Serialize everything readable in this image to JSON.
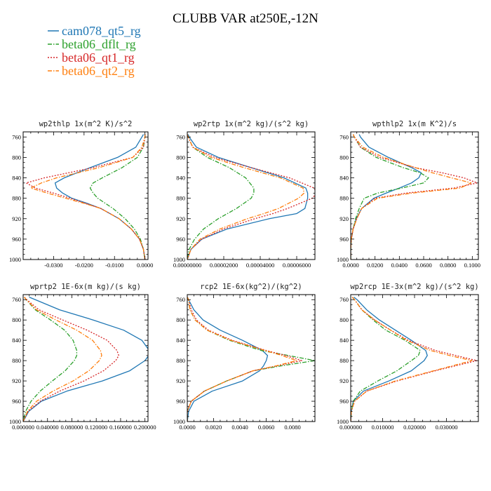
{
  "title": "CLUBB VAR at250E,-12N",
  "legend": [
    {
      "name": "cam078_qt5_rg",
      "color": "#1f77b4",
      "dash": "solid"
    },
    {
      "name": "beta06_dflt_rg",
      "color": "#2ca02c",
      "dash": "dashdot"
    },
    {
      "name": "beta06_qt1_rg",
      "color": "#d62728",
      "dash": "dot"
    },
    {
      "name": "beta06_qt2_rg",
      "color": "#ff7f0e",
      "dash": "dashdot"
    }
  ],
  "chart_data": [
    {
      "type": "line",
      "title": "wp2thlp  1x(m^2 K)/s^2",
      "xlim": [
        -0.04,
        0.001
      ],
      "ylim": [
        1000,
        750
      ],
      "xticks": [
        -0.03,
        -0.02,
        -0.01,
        0.0
      ],
      "xtick_labels": [
        "-0.0300",
        "-0.0200",
        "-0.0100",
        "0.0000"
      ],
      "yticks": [
        760,
        800,
        840,
        880,
        920,
        960,
        1000
      ],
      "y": [
        755,
        760,
        780,
        800,
        820,
        840,
        850,
        860,
        870,
        880,
        890,
        900,
        920,
        940,
        960,
        980,
        1000
      ],
      "series": [
        {
          "name": "cam078_qt5_rg",
          "x": [
            -0.0005,
            -0.001,
            -0.003,
            -0.009,
            -0.018,
            -0.0265,
            -0.0295,
            -0.029,
            -0.027,
            -0.024,
            -0.019,
            -0.0145,
            -0.0085,
            -0.0045,
            -0.0018,
            -0.0005,
            0.0
          ]
        },
        {
          "name": "beta06_dflt_rg",
          "x": [
            0.0,
            0.0,
            -0.0005,
            -0.0025,
            -0.0075,
            -0.014,
            -0.017,
            -0.018,
            -0.017,
            -0.0155,
            -0.013,
            -0.0105,
            -0.0065,
            -0.0035,
            -0.0015,
            -0.0005,
            0.0
          ]
        },
        {
          "name": "beta06_qt1_rg",
          "x": [
            0.0,
            0.0,
            -0.0005,
            -0.004,
            -0.017,
            -0.033,
            -0.039,
            -0.036,
            -0.03,
            -0.0245,
            -0.0195,
            -0.0145,
            -0.0085,
            -0.0045,
            -0.0018,
            -0.0005,
            0.0
          ]
        },
        {
          "name": "beta06_qt2_rg",
          "x": [
            0.0,
            0.0,
            -0.001,
            -0.004,
            -0.015,
            -0.029,
            -0.034,
            -0.0375,
            -0.032,
            -0.026,
            -0.02,
            -0.0145,
            -0.0085,
            -0.0045,
            -0.0018,
            -0.0005,
            0.0
          ]
        }
      ]
    },
    {
      "type": "line",
      "title": "wp2rtp  1x(m^2 kg)/(s^2 kg)",
      "xlim": [
        0.0,
        7e-05
      ],
      "ylim": [
        1000,
        750
      ],
      "xticks": [
        0.0,
        2e-05,
        4e-05,
        6e-05
      ],
      "xtick_labels": [
        "0.00000000",
        "0.00002000",
        "0.00004000",
        "0.00006000"
      ],
      "yticks": [
        760,
        800,
        840,
        880,
        920,
        960,
        1000
      ],
      "y": [
        755,
        760,
        780,
        800,
        820,
        840,
        860,
        870,
        880,
        900,
        910,
        920,
        940,
        960,
        980,
        1000
      ],
      "series": [
        {
          "name": "cam078_qt5_rg",
          "x": [
            5e-07,
            1e-06,
            5e-06,
            1.7e-05,
            3.5e-05,
            5.3e-05,
            6.5e-05,
            6.6e-05,
            6.6e-05,
            6.45e-05,
            6e-05,
            4.5e-05,
            2.2e-05,
            8e-06,
            2e-06,
            0.0
          ]
        },
        {
          "name": "beta06_dflt_rg",
          "x": [
            0.0,
            5e-07,
            3e-06,
            1.1e-05,
            2.3e-05,
            3.2e-05,
            3.65e-05,
            3.65e-05,
            3.5e-05,
            2.7e-05,
            2.2e-05,
            1.7e-05,
            9e-06,
            4e-06,
            1e-06,
            0.0
          ]
        },
        {
          "name": "beta06_qt1_rg",
          "x": [
            0.0,
            5e-07,
            3e-06,
            1.5e-05,
            3.5e-05,
            5.6e-05,
            6.95e-05,
            7.1e-05,
            6.85e-05,
            5.5e-05,
            4.7e-05,
            3.7e-05,
            2e-05,
            8e-06,
            2e-06,
            0.0
          ]
        },
        {
          "name": "beta06_qt2_rg",
          "x": [
            0.0,
            5e-07,
            3e-06,
            1.3e-05,
            3.1e-05,
            5.1e-05,
            6.35e-05,
            6.4e-05,
            6.1e-05,
            5e-05,
            4.2e-05,
            3.3e-05,
            1.8e-05,
            7e-06,
            2e-06,
            0.0
          ]
        }
      ]
    },
    {
      "type": "line",
      "title": "wpthlp2  1x(m K^2)/s",
      "xlim": [
        0.0,
        0.105
      ],
      "ylim": [
        1000,
        750
      ],
      "xticks": [
        0.0,
        0.02,
        0.04,
        0.06,
        0.08,
        0.1
      ],
      "xtick_labels": [
        "0.0000",
        "0.0200",
        "0.0400",
        "0.0600",
        "0.0800",
        "0.1000"
      ],
      "yticks": [
        760,
        800,
        840,
        880,
        920,
        960,
        1000
      ],
      "y": [
        755,
        760,
        780,
        800,
        820,
        830,
        840,
        850,
        860,
        870,
        880,
        900,
        920,
        940,
        960,
        980,
        1000
      ],
      "series": [
        {
          "name": "cam078_qt5_rg",
          "x": [
            0.007,
            0.008,
            0.015,
            0.031,
            0.05,
            0.058,
            0.056,
            0.05,
            0.04,
            0.029,
            0.019,
            0.009,
            0.0045,
            0.002,
            0.0005,
            0.0,
            0.0
          ]
        },
        {
          "name": "beta06_dflt_rg",
          "x": [
            0.002,
            0.003,
            0.008,
            0.021,
            0.043,
            0.057,
            0.064,
            0.06,
            0.042,
            0.022,
            0.011,
            0.007,
            0.004,
            0.002,
            0.0005,
            0.0,
            0.0
          ]
        },
        {
          "name": "beta06_qt1_rg",
          "x": [
            0.002,
            0.003,
            0.008,
            0.024,
            0.053,
            0.075,
            0.093,
            0.104,
            0.085,
            0.045,
            0.02,
            0.009,
            0.005,
            0.002,
            0.0005,
            0.0,
            0.0
          ]
        },
        {
          "name": "beta06_qt2_rg",
          "x": [
            0.002,
            0.003,
            0.01,
            0.027,
            0.053,
            0.067,
            0.083,
            0.099,
            0.09,
            0.05,
            0.022,
            0.009,
            0.005,
            0.002,
            0.0005,
            0.0,
            0.0
          ]
        }
      ]
    },
    {
      "type": "line",
      "title": "wprtp2  1E-6x(m kg)/(s kg)",
      "xlim": [
        0.0,
        0.205
      ],
      "ylim": [
        1000,
        750
      ],
      "xticks": [
        0.0,
        0.04,
        0.08,
        0.12,
        0.16,
        0.2
      ],
      "xtick_labels": [
        "0.000000",
        "0.040000",
        "0.080000",
        "0.120000",
        "0.160000",
        "0.200000"
      ],
      "yticks": [
        760,
        800,
        840,
        880,
        920,
        960,
        1000
      ],
      "y": [
        755,
        760,
        780,
        800,
        820,
        840,
        860,
        870,
        880,
        900,
        920,
        940,
        960,
        980,
        1000
      ],
      "series": [
        {
          "name": "cam078_qt5_rg",
          "x": [
            0.01,
            0.02,
            0.06,
            0.115,
            0.165,
            0.195,
            0.207,
            0.206,
            0.2,
            0.175,
            0.13,
            0.072,
            0.03,
            0.009,
            0.0
          ]
        },
        {
          "name": "beta06_dflt_rg",
          "x": [
            0.002,
            0.005,
            0.02,
            0.045,
            0.068,
            0.082,
            0.088,
            0.088,
            0.084,
            0.069,
            0.048,
            0.028,
            0.013,
            0.004,
            0.0
          ]
        },
        {
          "name": "beta06_qt1_rg",
          "x": [
            0.002,
            0.006,
            0.026,
            0.065,
            0.105,
            0.138,
            0.154,
            0.157,
            0.152,
            0.132,
            0.1,
            0.06,
            0.028,
            0.008,
            0.0
          ]
        },
        {
          "name": "beta06_qt2_rg",
          "x": [
            0.002,
            0.005,
            0.022,
            0.054,
            0.088,
            0.114,
            0.127,
            0.129,
            0.125,
            0.108,
            0.082,
            0.049,
            0.022,
            0.007,
            0.0
          ]
        }
      ]
    },
    {
      "type": "line",
      "title": "rcp2  1E-6x(kg^2)/(kg^2)",
      "xlim": [
        0.0,
        0.0097
      ],
      "ylim": [
        1000,
        750
      ],
      "xticks": [
        0.0,
        0.002,
        0.004,
        0.006,
        0.008
      ],
      "xtick_labels": [
        "0.0000",
        "0.0020",
        "0.0040",
        "0.0060",
        "0.0080"
      ],
      "yticks": [
        760,
        800,
        840,
        880,
        920,
        960,
        1000
      ],
      "y": [
        755,
        760,
        780,
        800,
        820,
        840,
        860,
        870,
        880,
        890,
        900,
        920,
        940,
        960,
        980,
        1000
      ],
      "series": [
        {
          "name": "cam078_qt5_rg",
          "x": [
            0.0,
            0.0001,
            0.0005,
            0.0012,
            0.0025,
            0.0042,
            0.0057,
            0.0061,
            0.006,
            0.0058,
            0.0055,
            0.0042,
            0.0019,
            0.0005,
            0.0001,
            0.0
          ]
        },
        {
          "name": "beta06_dflt_rg",
          "x": [
            0.0,
            0.0001,
            0.0002,
            0.0006,
            0.0015,
            0.0032,
            0.0056,
            0.0077,
            0.0097,
            0.0072,
            0.005,
            0.003,
            0.0013,
            0.0003,
            0.0,
            0.0
          ]
        },
        {
          "name": "beta06_qt1_rg",
          "x": [
            0.0,
            0.0001,
            0.0003,
            0.0007,
            0.0016,
            0.0034,
            0.006,
            0.0075,
            0.0087,
            0.0069,
            0.005,
            0.003,
            0.0013,
            0.0003,
            0.0,
            0.0
          ]
        },
        {
          "name": "beta06_qt2_rg",
          "x": [
            0.0,
            0.0001,
            0.0002,
            0.0006,
            0.0015,
            0.0033,
            0.0059,
            0.0072,
            0.0083,
            0.0068,
            0.005,
            0.003,
            0.0013,
            0.0003,
            0.0,
            0.0
          ]
        }
      ]
    },
    {
      "type": "line",
      "title": "wp2rcp  1E-3x(m^2 kg)/(s^2 kg)",
      "xlim": [
        0.0,
        0.04
      ],
      "ylim": [
        1000,
        750
      ],
      "xticks": [
        0.0,
        0.01,
        0.02,
        0.03
      ],
      "xtick_labels": [
        "0.000000",
        "0.010000",
        "0.020000",
        "0.030000"
      ],
      "yticks": [
        760,
        800,
        840,
        880,
        920,
        960,
        1000
      ],
      "y": [
        755,
        760,
        780,
        800,
        820,
        840,
        860,
        870,
        880,
        900,
        920,
        940,
        960,
        980,
        1000
      ],
      "series": [
        {
          "name": "cam078_qt5_rg",
          "x": [
            0.001,
            0.002,
            0.005,
            0.009,
            0.014,
            0.019,
            0.0235,
            0.024,
            0.023,
            0.019,
            0.012,
            0.004,
            0.0008,
            0.0002,
            0.0
          ]
        },
        {
          "name": "beta06_dflt_rg",
          "x": [
            0.0005,
            0.0012,
            0.0035,
            0.007,
            0.011,
            0.017,
            0.0218,
            0.0212,
            0.019,
            0.0145,
            0.0085,
            0.003,
            0.0008,
            0.0002,
            0.0
          ]
        },
        {
          "name": "beta06_qt1_rg",
          "x": [
            0.0005,
            0.0012,
            0.0035,
            0.0075,
            0.0125,
            0.018,
            0.0265,
            0.033,
            0.0395,
            0.0265,
            0.0145,
            0.005,
            0.0012,
            0.0002,
            0.0
          ]
        },
        {
          "name": "beta06_qt2_rg",
          "x": [
            0.0005,
            0.0012,
            0.0035,
            0.0075,
            0.0125,
            0.0175,
            0.025,
            0.031,
            0.038,
            0.026,
            0.014,
            0.005,
            0.0012,
            0.0002,
            0.0
          ]
        }
      ]
    }
  ]
}
